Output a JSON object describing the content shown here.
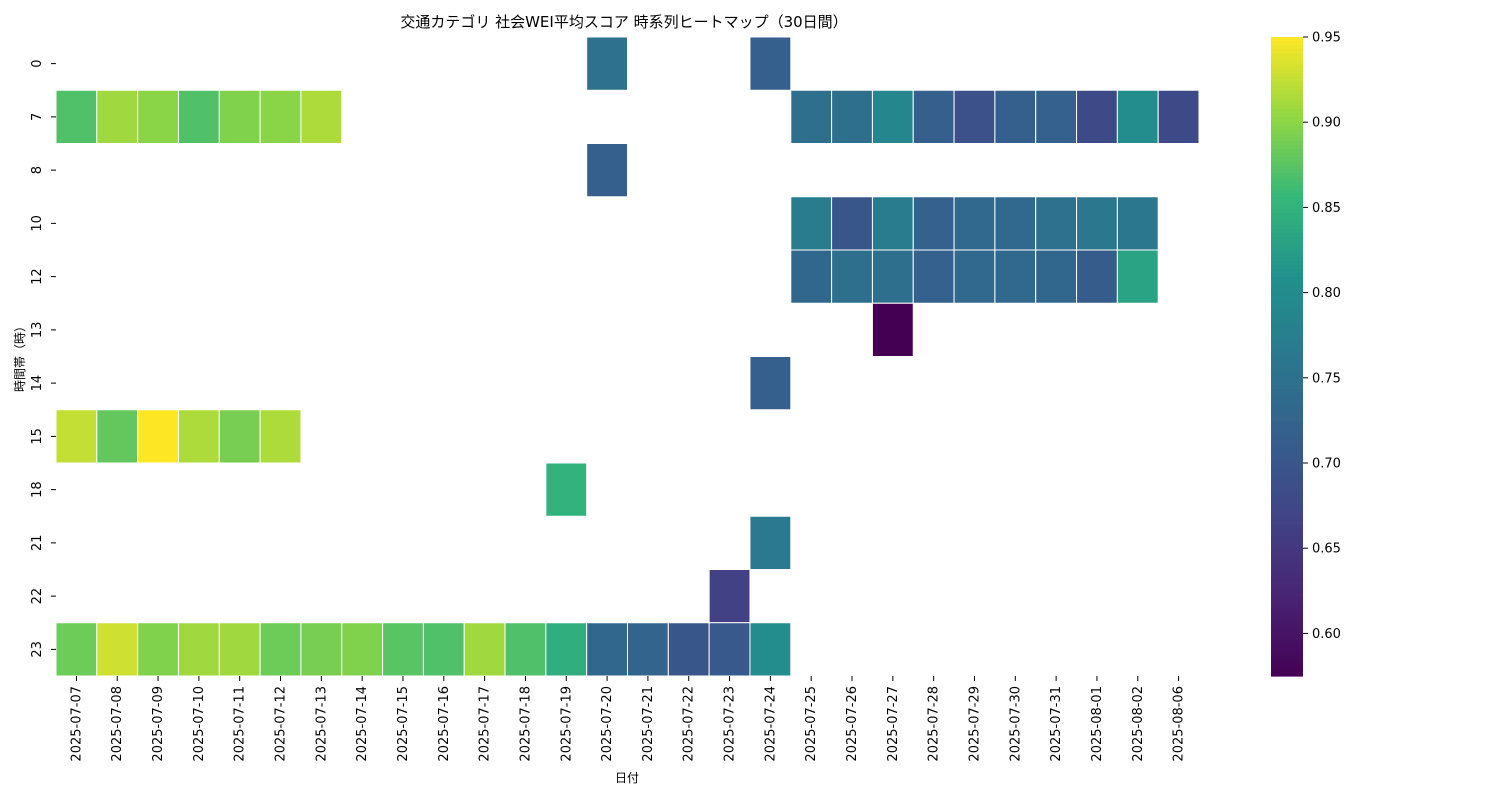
{
  "chart_data": {
    "type": "heatmap",
    "title": "交通カテゴリ 社会WEI平均スコア 時系列ヒートマップ（30日間）",
    "xlabel": "日付",
    "ylabel": "時間帯（時）",
    "x": [
      "2025-07-07",
      "2025-07-08",
      "2025-07-09",
      "2025-07-10",
      "2025-07-11",
      "2025-07-12",
      "2025-07-13",
      "2025-07-14",
      "2025-07-15",
      "2025-07-16",
      "2025-07-17",
      "2025-07-18",
      "2025-07-19",
      "2025-07-20",
      "2025-07-21",
      "2025-07-22",
      "2025-07-23",
      "2025-07-24",
      "2025-07-25",
      "2025-07-26",
      "2025-07-27",
      "2025-07-28",
      "2025-07-29",
      "2025-07-30",
      "2025-07-31",
      "2025-08-01",
      "2025-08-02",
      "2025-08-06"
    ],
    "y": [
      "0",
      "7",
      "8",
      "10",
      "12",
      "13",
      "14",
      "15",
      "18",
      "21",
      "22",
      "23"
    ],
    "values": [
      [
        null,
        null,
        null,
        null,
        null,
        null,
        null,
        null,
        null,
        null,
        null,
        null,
        null,
        0.75,
        null,
        null,
        null,
        0.715,
        null,
        null,
        null,
        null,
        null,
        null,
        null,
        null,
        null,
        null
      ],
      [
        0.87,
        0.91,
        0.9,
        0.87,
        0.895,
        0.9,
        0.915,
        null,
        null,
        null,
        null,
        null,
        null,
        null,
        null,
        null,
        null,
        null,
        0.745,
        0.745,
        0.79,
        0.715,
        0.69,
        0.715,
        0.72,
        0.68,
        0.8,
        0.68
      ],
      [
        null,
        null,
        null,
        null,
        null,
        null,
        null,
        null,
        null,
        null,
        null,
        null,
        null,
        0.715,
        null,
        null,
        null,
        null,
        null,
        null,
        null,
        null,
        null,
        null,
        null,
        null,
        null,
        null
      ],
      [
        null,
        null,
        null,
        null,
        null,
        null,
        null,
        null,
        null,
        null,
        null,
        null,
        null,
        null,
        null,
        null,
        null,
        null,
        0.77,
        0.7,
        0.77,
        0.72,
        0.735,
        0.735,
        0.75,
        0.76,
        0.76,
        null
      ],
      [
        null,
        null,
        null,
        null,
        null,
        null,
        null,
        null,
        null,
        null,
        null,
        null,
        null,
        null,
        null,
        null,
        null,
        null,
        0.73,
        0.745,
        0.745,
        0.72,
        0.735,
        0.735,
        0.73,
        0.71,
        0.83,
        null
      ],
      [
        null,
        null,
        null,
        null,
        null,
        null,
        null,
        null,
        null,
        null,
        null,
        null,
        null,
        null,
        null,
        null,
        null,
        null,
        null,
        null,
        0.575,
        null,
        null,
        null,
        null,
        null,
        null,
        null
      ],
      [
        null,
        null,
        null,
        null,
        null,
        null,
        null,
        null,
        null,
        null,
        null,
        null,
        null,
        null,
        null,
        null,
        null,
        0.715,
        null,
        null,
        null,
        null,
        null,
        null,
        null,
        null,
        null,
        null
      ],
      [
        0.925,
        0.88,
        0.95,
        0.915,
        0.89,
        0.915,
        null,
        null,
        null,
        null,
        null,
        null,
        null,
        null,
        null,
        null,
        null,
        null,
        null,
        null,
        null,
        null,
        null,
        null,
        null,
        null,
        null,
        null
      ],
      [
        null,
        null,
        null,
        null,
        null,
        null,
        null,
        null,
        null,
        null,
        null,
        null,
        0.85,
        null,
        null,
        null,
        null,
        null,
        null,
        null,
        null,
        null,
        null,
        null,
        null,
        null,
        null,
        null
      ],
      [
        null,
        null,
        null,
        null,
        null,
        null,
        null,
        null,
        null,
        null,
        null,
        null,
        null,
        null,
        null,
        null,
        null,
        0.765,
        null,
        null,
        null,
        null,
        null,
        null,
        null,
        null,
        null,
        null
      ],
      [
        null,
        null,
        null,
        null,
        null,
        null,
        null,
        null,
        null,
        null,
        null,
        null,
        null,
        null,
        null,
        null,
        0.665,
        null,
        null,
        null,
        null,
        null,
        null,
        null,
        null,
        null,
        null,
        null
      ],
      [
        0.885,
        0.93,
        0.895,
        0.91,
        0.91,
        0.885,
        0.89,
        0.895,
        0.875,
        0.87,
        0.91,
        0.87,
        0.845,
        0.73,
        0.725,
        0.7,
        0.705,
        0.8,
        null,
        null,
        null,
        null,
        null,
        null,
        null,
        null,
        null,
        null
      ]
    ],
    "colorbar": {
      "min": 0.575,
      "max": 0.95,
      "ticks": [
        "0.60",
        "0.65",
        "0.70",
        "0.75",
        "0.80",
        "0.85",
        "0.90",
        "0.95"
      ],
      "colormap": "viridis"
    }
  }
}
